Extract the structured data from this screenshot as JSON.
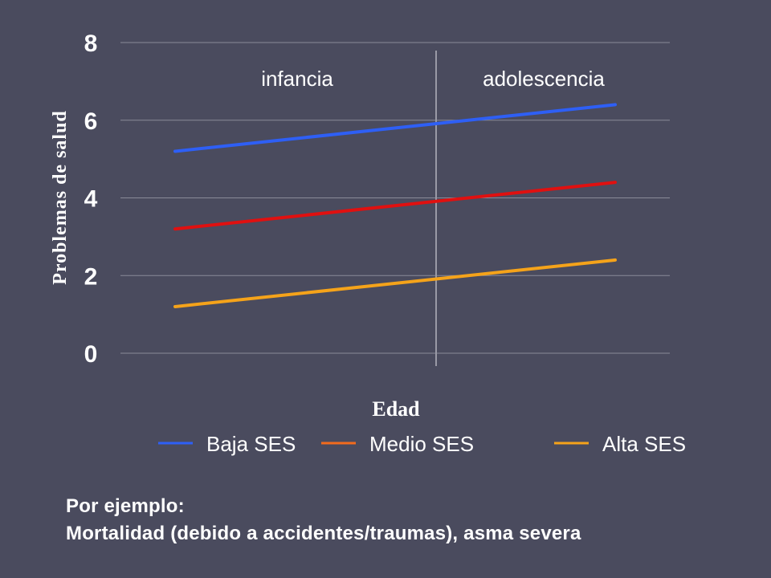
{
  "chart_data": {
    "type": "line",
    "x": [
      "infancia",
      "adolescencia"
    ],
    "xlabel": "Edad",
    "ylabel": "Problemas de salud",
    "ylim": [
      0,
      8
    ],
    "yticks": [
      "0",
      "2",
      "4",
      "6",
      "8"
    ],
    "grid": true,
    "legend_position": "bottom",
    "regions": [
      {
        "label": "infancia"
      },
      {
        "label": "adolescencia"
      }
    ],
    "series": [
      {
        "name": "Baja SES",
        "color": "#2e5ff5",
        "legend_color": "#2e5ff5",
        "values": [
          5.2,
          6.4
        ]
      },
      {
        "name": "Medio SES",
        "color": "#e01010",
        "legend_color": "#f26b1d",
        "values": [
          3.2,
          4.4
        ]
      },
      {
        "name": "Alta SES",
        "color": "#f5a31a",
        "legend_color": "#f5a31a",
        "values": [
          1.2,
          2.4
        ]
      }
    ]
  },
  "note": {
    "line1": "Por ejemplo:",
    "line2": "Mortalidad (debido a accidentes/traumas), asma severa"
  }
}
